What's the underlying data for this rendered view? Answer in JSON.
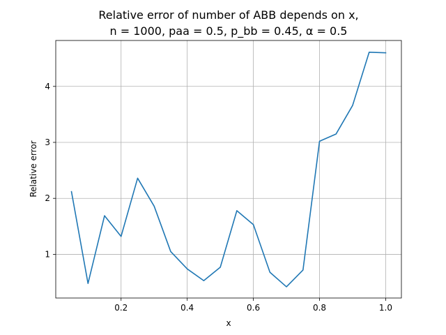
{
  "chart_data": {
    "type": "line",
    "title_line1": "Relative error of number of ABB depends on x,",
    "title_line2": "n = 1000, paa = 0.5, p_bb = 0.45, α = 0.5",
    "xlabel": "x",
    "ylabel": "Relative error",
    "xlim": [
      0.0025,
      1.0475
    ],
    "ylim": [
      0.22,
      4.82
    ],
    "grid": true,
    "x_ticks": [
      "0.2",
      "0.4",
      "0.6",
      "0.8",
      "1.0"
    ],
    "x_tick_values": [
      0.2,
      0.4,
      0.6,
      0.8,
      1.0
    ],
    "y_ticks": [
      "1",
      "2",
      "3",
      "4"
    ],
    "y_tick_values": [
      1,
      2,
      3,
      4
    ],
    "series": [
      {
        "color": "#1f77b4",
        "x": [
          0.05,
          0.1,
          0.15,
          0.2,
          0.25,
          0.3,
          0.35,
          0.4,
          0.45,
          0.5,
          0.55,
          0.6,
          0.65,
          0.7,
          0.75,
          0.8,
          0.85,
          0.9,
          0.95,
          1.0
        ],
        "y": [
          2.12,
          0.48,
          1.69,
          1.32,
          2.36,
          1.86,
          1.05,
          0.74,
          0.53,
          0.77,
          1.78,
          1.53,
          0.68,
          0.42,
          0.72,
          3.02,
          3.15,
          3.66,
          4.61,
          4.6
        ]
      }
    ]
  }
}
